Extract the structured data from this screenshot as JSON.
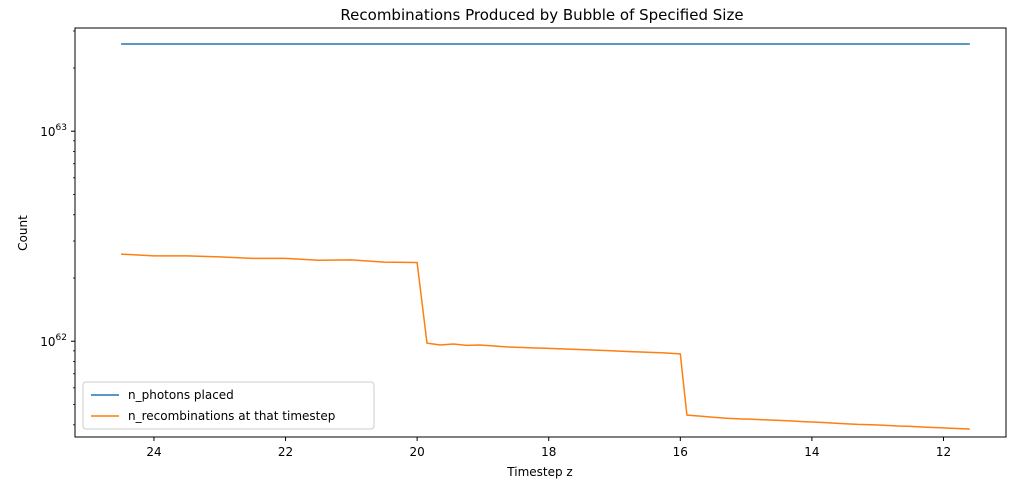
{
  "chart_data": {
    "type": "line",
    "title": "Recombinations Produced by Bubble of Specified Size",
    "xlabel": "Timestep z",
    "ylabel": "Count",
    "x_reversed": true,
    "xlim": [
      25.2,
      11.05
    ],
    "y_scale": "log",
    "ylim": [
      3.5e+61,
      3.1e+63
    ],
    "x_ticks": [
      24,
      22,
      20,
      18,
      16,
      14,
      12
    ],
    "y_ticks": [
      {
        "value": 1e+62,
        "base": "10",
        "exp": "62"
      },
      {
        "value": 1e+63,
        "base": "10",
        "exp": "63"
      }
    ],
    "grid": false,
    "legend_position": "lower-left",
    "series": [
      {
        "name": "n_photons placed",
        "color": "#1f77b4",
        "x": [
          24.5,
          11.6
        ],
        "y": [
          2.6e+63,
          2.6e+63
        ]
      },
      {
        "name": "n_recombinations at that timestep",
        "color": "#ff7f0e",
        "x": [
          24.5,
          24.0,
          23.5,
          23.0,
          22.5,
          22.0,
          21.5,
          21.0,
          20.5,
          20.0,
          19.85,
          19.65,
          19.45,
          19.25,
          19.05,
          18.85,
          18.65,
          18.45,
          18.25,
          18.05,
          17.85,
          17.65,
          17.45,
          17.25,
          17.05,
          16.85,
          16.65,
          16.45,
          16.25,
          16.0,
          15.9,
          15.7,
          15.5,
          15.3,
          15.1,
          14.9,
          14.7,
          14.5,
          14.3,
          14.1,
          13.9,
          13.7,
          13.5,
          13.3,
          13.1,
          12.9,
          12.7,
          12.5,
          12.3,
          12.1,
          11.9,
          11.6
        ],
        "y": [
          2.6e+62,
          2.55e+62,
          2.55e+62,
          2.52e+62,
          2.48e+62,
          2.48e+62,
          2.43e+62,
          2.44e+62,
          2.38e+62,
          2.37e+62,
          9.8e+61,
          9.6e+61,
          9.7e+61,
          9.55e+61,
          9.6e+61,
          9.5e+61,
          9.4e+61,
          9.35e+61,
          9.3e+61,
          9.25e+61,
          9.2e+61,
          9.15e+61,
          9.1e+61,
          9.05e+61,
          9e+61,
          8.95e+61,
          8.9e+61,
          8.85e+61,
          8.8e+61,
          8.7e+61,
          4.45e+61,
          4.4e+61,
          4.35e+61,
          4.3e+61,
          4.27e+61,
          4.25e+61,
          4.22e+61,
          4.2e+61,
          4.17e+61,
          4.14e+61,
          4.11e+61,
          4.08e+61,
          4.05e+61,
          4.02e+61,
          4e+61,
          3.98e+61,
          3.95e+61,
          3.93e+61,
          3.9e+61,
          3.88e+61,
          3.85e+61,
          3.82e+61
        ]
      }
    ]
  }
}
